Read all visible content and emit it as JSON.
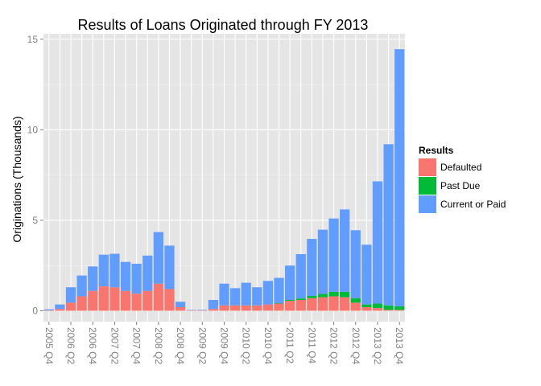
{
  "chart_data": {
    "type": "bar",
    "stacked": true,
    "title": "Results of Loans Originated through FY 2013",
    "xlabel": "",
    "ylabel": "Originations (Thousands)",
    "ylim": [
      -0.6,
      15.3
    ],
    "yticks": [
      0,
      5,
      10,
      15
    ],
    "grid": true,
    "legend_position": "right",
    "legend_title": "Results",
    "categories": [
      "2005 Q4",
      "2006 Q1",
      "2006 Q2",
      "2006 Q3",
      "2006 Q4",
      "2007 Q1",
      "2007 Q2",
      "2007 Q3",
      "2007 Q4",
      "2008 Q1",
      "2008 Q2",
      "2008 Q3",
      "2008 Q4",
      "2009 Q1",
      "2009 Q2",
      "2009 Q3",
      "2009 Q4",
      "2010 Q1",
      "2010 Q2",
      "2010 Q3",
      "2010 Q4",
      "2011 Q1",
      "2011 Q2",
      "2011 Q3",
      "2011 Q4",
      "2012 Q1",
      "2012 Q2",
      "2012 Q3",
      "2012 Q4",
      "2013 Q1",
      "2013 Q2",
      "2013 Q3",
      "2013 Q4"
    ],
    "tick_labels": [
      "2005 Q4",
      "2006 Q2",
      "2006 Q4",
      "2007 Q2",
      "2007 Q4",
      "2008 Q2",
      "2008 Q4",
      "2009 Q2",
      "2009 Q4",
      "2010 Q2",
      "2010 Q4",
      "2011 Q2",
      "2011 Q4",
      "2012 Q2",
      "2012 Q4",
      "2013 Q2",
      "2013 Q4"
    ],
    "series": [
      {
        "name": "Defaulted",
        "color": "#F8766D",
        "values": [
          0.02,
          0.1,
          0.45,
          0.8,
          1.1,
          1.35,
          1.3,
          1.1,
          0.95,
          1.1,
          1.5,
          1.2,
          0.2,
          0.03,
          0.02,
          0.1,
          0.3,
          0.3,
          0.3,
          0.3,
          0.35,
          0.4,
          0.55,
          0.6,
          0.7,
          0.75,
          0.8,
          0.75,
          0.45,
          0.2,
          0.15,
          0.05,
          0.05
        ]
      },
      {
        "name": "Past Due",
        "color": "#00BA38",
        "values": [
          0,
          0,
          0,
          0,
          0,
          0,
          0,
          0,
          0,
          0,
          0,
          0,
          0,
          0,
          0,
          0,
          0,
          0,
          0,
          0,
          0,
          0.02,
          0.05,
          0.08,
          0.12,
          0.18,
          0.25,
          0.3,
          0.25,
          0.15,
          0.25,
          0.25,
          0.2
        ]
      },
      {
        "name": "Current or Paid",
        "color": "#619CFF",
        "values": [
          0.06,
          0.25,
          0.85,
          1.15,
          1.35,
          1.75,
          1.85,
          1.6,
          1.65,
          1.95,
          2.85,
          2.4,
          0.3,
          0.02,
          0.03,
          0.5,
          1.2,
          0.95,
          1.25,
          1.0,
          1.3,
          1.4,
          1.9,
          2.45,
          3.15,
          3.55,
          4.05,
          4.55,
          3.75,
          3.3,
          6.75,
          8.9,
          14.2
        ]
      }
    ]
  }
}
